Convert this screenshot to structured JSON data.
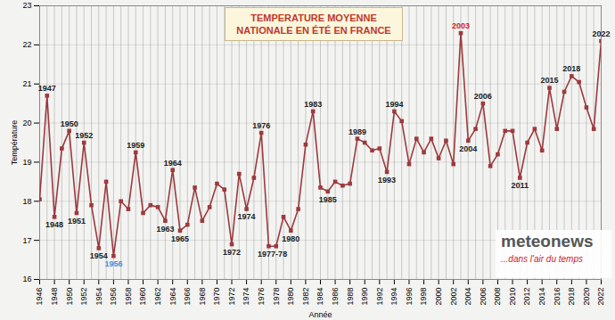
{
  "chart_data": {
    "type": "line",
    "title": "TEMPERATURE MOYENNE NATIONALE EN ÉTÉ EN FRANCE",
    "x_label": "Année",
    "y_label": "Température",
    "x": [
      1946,
      1947,
      1948,
      1949,
      1950,
      1951,
      1952,
      1953,
      1954,
      1955,
      1956,
      1957,
      1958,
      1959,
      1960,
      1961,
      1962,
      1963,
      1964,
      1965,
      1966,
      1967,
      1968,
      1969,
      1970,
      1971,
      1972,
      1973,
      1974,
      1975,
      1976,
      1977,
      1978,
      1979,
      1980,
      1981,
      1982,
      1983,
      1984,
      1985,
      1986,
      1987,
      1988,
      1989,
      1990,
      1991,
      1992,
      1993,
      1994,
      1995,
      1996,
      1997,
      1998,
      1999,
      2000,
      2001,
      2002,
      2003,
      2004,
      2005,
      2006,
      2007,
      2008,
      2009,
      2010,
      2011,
      2012,
      2013,
      2014,
      2015,
      2016,
      2017,
      2018,
      2019,
      2020,
      2021,
      2022
    ],
    "values": [
      18.05,
      20.7,
      17.6,
      19.35,
      19.8,
      17.7,
      19.5,
      17.9,
      16.8,
      18.5,
      16.6,
      18.0,
      17.8,
      19.25,
      17.7,
      17.9,
      17.85,
      17.5,
      18.8,
      17.25,
      17.4,
      18.35,
      17.5,
      17.85,
      18.45,
      18.3,
      16.9,
      18.7,
      17.8,
      18.6,
      19.75,
      16.85,
      16.85,
      17.6,
      17.25,
      17.8,
      19.45,
      20.3,
      18.35,
      18.25,
      18.5,
      18.4,
      18.45,
      19.6,
      19.5,
      19.3,
      19.35,
      18.75,
      20.3,
      20.05,
      18.95,
      19.6,
      19.25,
      19.6,
      19.1,
      19.55,
      18.95,
      22.3,
      19.55,
      19.85,
      20.5,
      18.9,
      19.2,
      19.8,
      19.8,
      18.6,
      19.5,
      19.85,
      19.3,
      20.9,
      19.85,
      20.8,
      21.2,
      21.05,
      20.4,
      19.85,
      22.1
    ],
    "color": "#9c3a3e",
    "marker": "square",
    "xlim": [
      1946,
      2022
    ],
    "xticks": [
      1946,
      1948,
      1950,
      1952,
      1954,
      1956,
      1958,
      1960,
      1962,
      1964,
      1966,
      1968,
      1970,
      1972,
      1974,
      1976,
      1978,
      1980,
      1982,
      1984,
      1986,
      1988,
      1990,
      1992,
      1994,
      1996,
      1998,
      2000,
      2002,
      2004,
      2006,
      2008,
      2010,
      2012,
      2014,
      2016,
      2018,
      2020,
      2022
    ],
    "ylim": [
      16,
      23
    ],
    "yticks": [
      16,
      17,
      18,
      19,
      20,
      21,
      22,
      23
    ],
    "grid": true,
    "annotations": [
      {
        "x": 1947,
        "text": "1947"
      },
      {
        "x": 1948,
        "text": "1948"
      },
      {
        "x": 1950,
        "text": "1950"
      },
      {
        "x": 1951,
        "text": "1951"
      },
      {
        "x": 1952,
        "text": "1952"
      },
      {
        "x": 1954,
        "text": "1954"
      },
      {
        "x": 1956,
        "text": "1956",
        "color": "#4a8fd6"
      },
      {
        "x": 1959,
        "text": "1959"
      },
      {
        "x": 1963,
        "text": "1963"
      },
      {
        "x": 1964,
        "text": "1964"
      },
      {
        "x": 1965,
        "text": "1965"
      },
      {
        "x": 1972,
        "text": "1972"
      },
      {
        "x": 1974,
        "text": "1974"
      },
      {
        "x": 1976,
        "text": "1976"
      },
      {
        "x": 1977.5,
        "text": "1977-78"
      },
      {
        "x": 1980,
        "text": "1980"
      },
      {
        "x": 1983,
        "text": "1983"
      },
      {
        "x": 1985,
        "text": "1985"
      },
      {
        "x": 1989,
        "text": "1989"
      },
      {
        "x": 1993,
        "text": "1993"
      },
      {
        "x": 1994,
        "text": "1994"
      },
      {
        "x": 2003,
        "text": "2003",
        "color": "#d0202a"
      },
      {
        "x": 2004,
        "text": "2004"
      },
      {
        "x": 2006,
        "text": "2006"
      },
      {
        "x": 2011,
        "text": "2011"
      },
      {
        "x": 2015,
        "text": "2015"
      },
      {
        "x": 2018,
        "text": "2018"
      },
      {
        "x": 2022,
        "text": "2022"
      }
    ],
    "logo": {
      "name": "meteonews",
      "tagline": "...dans l'air du temps"
    }
  }
}
